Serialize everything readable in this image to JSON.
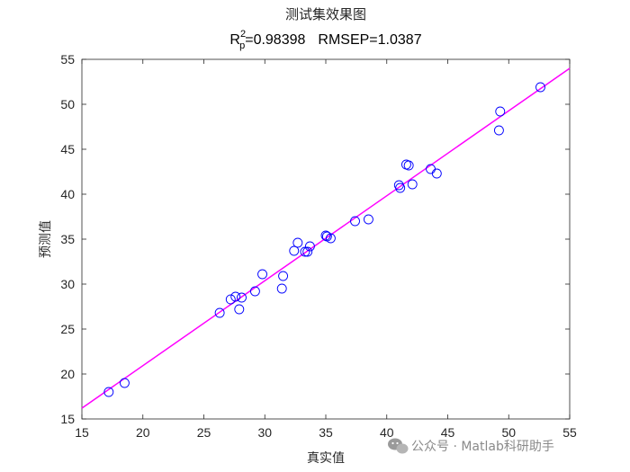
{
  "chart_data": {
    "type": "scatter",
    "title": "测试集效果图",
    "subtitle": {
      "r_letter": "R",
      "r_sup": "2",
      "r_sub": "p",
      "r2_text": "=0.98398",
      "rmsep_text": "RMSEP=1.0387"
    },
    "xlabel": "真实值",
    "ylabel": "预测值",
    "xlim": [
      15,
      55
    ],
    "ylim": [
      15,
      55
    ],
    "xticks": [
      15,
      20,
      25,
      30,
      35,
      40,
      45,
      50,
      55
    ],
    "yticks": [
      15,
      20,
      25,
      30,
      35,
      40,
      45,
      50,
      55
    ],
    "marker_color": "#0000ff",
    "fit_line_color": "#ff00ff",
    "fit_line": [
      [
        15,
        16.2
      ],
      [
        55,
        54.0
      ]
    ],
    "points": [
      [
        17.2,
        18.0
      ],
      [
        18.5,
        19.0
      ],
      [
        26.3,
        26.8
      ],
      [
        27.2,
        28.3
      ],
      [
        27.6,
        28.6
      ],
      [
        27.9,
        27.2
      ],
      [
        28.1,
        28.5
      ],
      [
        29.2,
        29.2
      ],
      [
        29.8,
        31.1
      ],
      [
        31.4,
        29.5
      ],
      [
        31.5,
        30.9
      ],
      [
        32.4,
        33.7
      ],
      [
        32.7,
        34.6
      ],
      [
        33.3,
        33.6
      ],
      [
        33.5,
        33.6
      ],
      [
        33.7,
        34.2
      ],
      [
        35.0,
        35.4
      ],
      [
        35.1,
        35.3
      ],
      [
        35.4,
        35.1
      ],
      [
        37.4,
        37.0
      ],
      [
        38.5,
        37.2
      ],
      [
        41.0,
        41.0
      ],
      [
        41.1,
        40.7
      ],
      [
        41.6,
        43.3
      ],
      [
        41.8,
        43.2
      ],
      [
        42.1,
        41.1
      ],
      [
        43.6,
        42.8
      ],
      [
        44.1,
        42.3
      ],
      [
        49.2,
        47.1
      ],
      [
        49.3,
        49.2
      ],
      [
        52.6,
        51.9
      ]
    ]
  },
  "watermark": "公众号 · Matlab科研助手"
}
